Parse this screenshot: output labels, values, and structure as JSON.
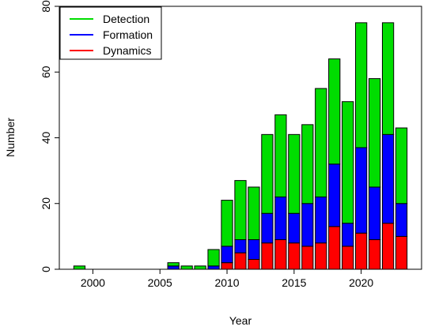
{
  "chart_data": {
    "type": "bar",
    "stacked": true,
    "xlabel": "Year",
    "ylabel": "Number",
    "xlim": [
      1997.5,
      2024.5
    ],
    "ylim": [
      0,
      80
    ],
    "x_ticks": [
      2000,
      2005,
      2010,
      2015,
      2020
    ],
    "y_ticks": [
      0,
      20,
      40,
      60,
      80
    ],
    "categories": [
      1999,
      2006,
      2007,
      2008,
      2009,
      2010,
      2011,
      2012,
      2013,
      2014,
      2015,
      2016,
      2017,
      2018,
      2019,
      2020,
      2021,
      2022,
      2023
    ],
    "series": [
      {
        "name": "Dynamics",
        "color": "#ff0000",
        "values": [
          0,
          0,
          0,
          0,
          0,
          2,
          5,
          3,
          8,
          9,
          8,
          7,
          8,
          13,
          7,
          11,
          9,
          14,
          10
        ]
      },
      {
        "name": "Formation",
        "color": "#0000ff",
        "values": [
          0,
          1,
          0,
          0,
          1,
          5,
          4,
          6,
          9,
          13,
          9,
          13,
          14,
          19,
          7,
          26,
          16,
          27,
          10
        ]
      },
      {
        "name": "Detection",
        "color": "#00dd00",
        "values": [
          1,
          1,
          1,
          1,
          5,
          14,
          18,
          16,
          24,
          25,
          24,
          24,
          33,
          32,
          37,
          38,
          33,
          34,
          23
        ]
      }
    ],
    "legend": {
      "position": "top-left",
      "order": [
        "Detection",
        "Formation",
        "Dynamics"
      ]
    },
    "grid": false
  }
}
